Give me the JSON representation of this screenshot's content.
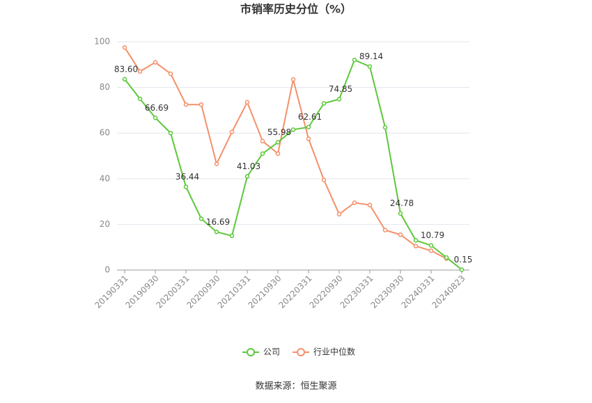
{
  "chart_data": {
    "type": "line",
    "title": "市销率历史分位（%）",
    "categories": [
      "20190331",
      null,
      "20190930",
      null,
      "20200331",
      null,
      "20200930",
      null,
      "20210331",
      null,
      "20210930",
      null,
      "20220331",
      null,
      "20220930",
      null,
      "20230331",
      null,
      "20230930",
      null,
      "20240331",
      null,
      "20240823"
    ],
    "series": [
      {
        "name": "公司",
        "color": "#5cc83a",
        "values": [
          83.6,
          75,
          66.69,
          60,
          36.44,
          22.5,
          16.69,
          15,
          41.03,
          51,
          55.98,
          61.5,
          62.61,
          73,
          74.85,
          92,
          89.14,
          62.5,
          24.78,
          13,
          10.79,
          5.5,
          0.15
        ],
        "value_labels": [
          "83.60",
          null,
          "66.69",
          null,
          "36.44",
          null,
          "16.69",
          null,
          "41.03",
          null,
          "55.98",
          null,
          "62.61",
          null,
          "74.85",
          null,
          "89.14",
          null,
          "24.78",
          null,
          "10.79",
          null,
          "0.15"
        ]
      },
      {
        "name": "行业中位数",
        "color": "#f4906a",
        "values": [
          97.5,
          87,
          91,
          86,
          72.5,
          72.5,
          46.5,
          60.5,
          73.5,
          56.5,
          51,
          83.5,
          57.5,
          39.5,
          24.5,
          29.5,
          28.5,
          17.5,
          15.5,
          10.5,
          8.5,
          5,
          null
        ]
      }
    ],
    "ylim": [
      0,
      100
    ],
    "yticks": [
      0,
      20,
      40,
      60,
      80,
      100
    ],
    "grid": true,
    "source": "数据来源：恒生聚源"
  }
}
